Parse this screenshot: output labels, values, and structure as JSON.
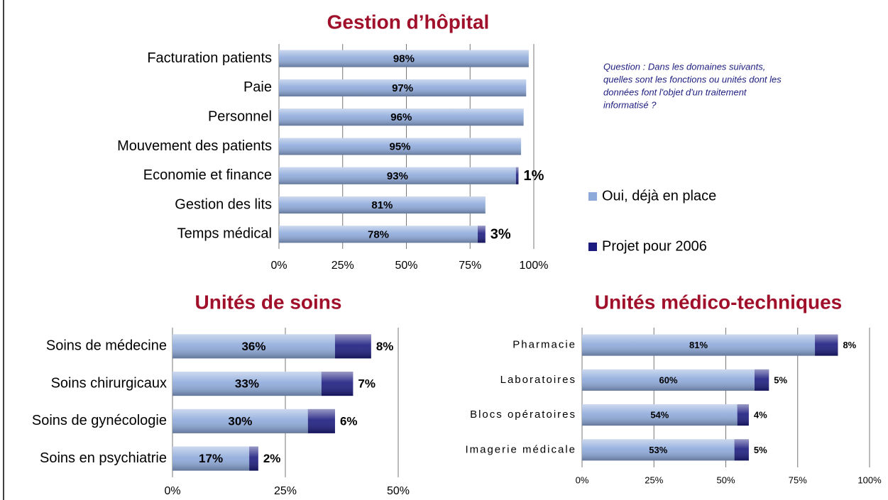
{
  "chart_data": [
    {
      "type": "bar",
      "orientation": "horizontal",
      "stacked": true,
      "title": "Gestion d’hôpital",
      "categories": [
        "Facturation patients",
        "Paie",
        "Personnel",
        "Mouvement des patients",
        "Economie et finance",
        "Gestion des lits",
        "Temps médical"
      ],
      "series": [
        {
          "name": "Oui, déjà en place",
          "color": "#8eaadb",
          "values": [
            98,
            97,
            96,
            95,
            93,
            81,
            78
          ],
          "value_labels": [
            "98%",
            "97%",
            "96%",
            "95%",
            "93%",
            "81%",
            "78%"
          ]
        },
        {
          "name": "Projet pour 2006",
          "color": "#1c1c80",
          "values": [
            0,
            0,
            0,
            0,
            1,
            0,
            3
          ],
          "value_labels": [
            null,
            null,
            null,
            null,
            "1%",
            null,
            "3%"
          ]
        }
      ],
      "xlim": [
        0,
        100
      ],
      "xticks": [
        {
          "value": 0,
          "label": "0%"
        },
        {
          "value": 25,
          "label": "25%"
        },
        {
          "value": 50,
          "label": "50%"
        },
        {
          "value": 75,
          "label": "75%"
        },
        {
          "value": 100,
          "label": "100%"
        }
      ],
      "grid": true,
      "legend": "right",
      "annotation": [
        "Question : Dans les domaines suivants,",
        "quelles sont les fonctions ou unités  dont les",
        "données font l'objet d'un traitement",
        "informatisé ?"
      ]
    },
    {
      "type": "bar",
      "orientation": "horizontal",
      "stacked": true,
      "title": "Unités de soins",
      "categories": [
        "Soins de médecine",
        "Soins chirurgicaux",
        "Soins de gynécologie",
        "Soins en psychiatrie"
      ],
      "series": [
        {
          "name": "Oui, déjà en place",
          "color": "#8eaadb",
          "values": [
            36,
            33,
            30,
            17
          ],
          "value_labels": [
            "36%",
            "33%",
            "30%",
            "17%"
          ]
        },
        {
          "name": "Projet pour 2006",
          "color": "#1c1c80",
          "values": [
            8,
            7,
            6,
            2
          ],
          "value_labels": [
            "8%",
            "7%",
            "6%",
            "2%"
          ]
        }
      ],
      "xlim": [
        0,
        50
      ],
      "xticks": [
        {
          "value": 0,
          "label": "0%"
        },
        {
          "value": 25,
          "label": "25%"
        },
        {
          "value": 50,
          "label": "50%"
        }
      ],
      "grid": true
    },
    {
      "type": "bar",
      "orientation": "horizontal",
      "stacked": true,
      "title": "Unités médico-techniques",
      "categories": [
        "Pharmacie",
        "Laboratoires",
        "Blocs opératoires",
        "Imagerie médicale"
      ],
      "series": [
        {
          "name": "Oui, déjà en place",
          "color": "#8eaadb",
          "values": [
            81,
            60,
            54,
            53
          ],
          "value_labels": [
            "81%",
            "60%",
            "54%",
            "53%"
          ]
        },
        {
          "name": "Projet pour 2006",
          "color": "#1c1c80",
          "values": [
            8,
            5,
            4,
            5
          ],
          "value_labels": [
            "8%",
            "5%",
            "4%",
            "5%"
          ]
        }
      ],
      "xlim": [
        0,
        100
      ],
      "xticks": [
        {
          "value": 0,
          "label": "0%"
        },
        {
          "value": 25,
          "label": "25%"
        },
        {
          "value": 50,
          "label": "50%"
        },
        {
          "value": 75,
          "label": "75%"
        },
        {
          "value": 100,
          "label": "100%"
        }
      ],
      "grid": true
    }
  ]
}
